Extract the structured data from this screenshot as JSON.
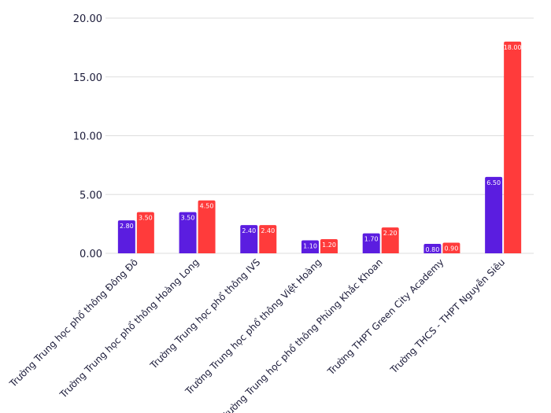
{
  "chart_data": {
    "type": "bar",
    "categories": [
      "Trường Trung học phổ thông Đông Đô",
      "Trường Trung học phổ thông Hoàng Long",
      "Trường Trung học phổ thông IVS",
      "Trường Trung học phổ thông Việt Hoàng",
      "Trường Trung học phổ thông Phùng Khắc Khoan",
      "Trường THPT Green City Academy",
      "Trường THCS - THPT Nguyễn Siêu"
    ],
    "series": [
      {
        "values": [
          2.8,
          3.5,
          2.4,
          1.1,
          1.7,
          0.8,
          6.5
        ],
        "labels": [
          "2.80",
          "3.50",
          "2.40",
          "1.10",
          "1.70",
          "0.80",
          "6.50"
        ],
        "color": "#5b1de0"
      },
      {
        "values": [
          3.5,
          4.5,
          2.4,
          1.2,
          2.2,
          0.9,
          18.0
        ],
        "labels": [
          "3.50",
          "4.50",
          "2.40",
          "1.20",
          "2.20",
          "0.90",
          "18.00"
        ],
        "color": "#ff3b3b"
      }
    ],
    "ylim": [
      0,
      20
    ],
    "yticks": [
      0,
      5,
      10,
      15,
      20
    ],
    "ytick_labels": [
      "0.00",
      "5.00",
      "10.00",
      "15.00",
      "20.00"
    ],
    "grid": true,
    "title": "",
    "xlabel": "",
    "ylabel": ""
  }
}
